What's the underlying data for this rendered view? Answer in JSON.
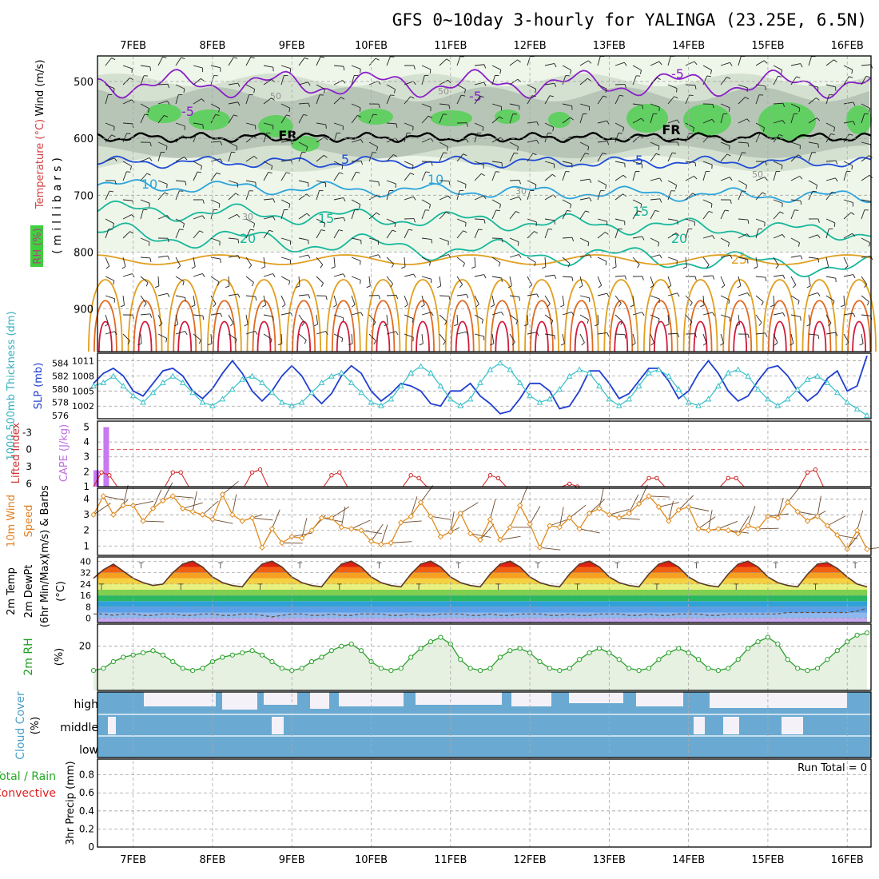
{
  "title": "GFS 0~10day 3-hourly for YALINGA (23.25E, 6.5N)",
  "dates": [
    "7FEB",
    "8FEB",
    "9FEB",
    "10FEB",
    "11FEB",
    "12FEB",
    "13FEB",
    "14FEB",
    "15FEB",
    "16FEB"
  ],
  "run_total": "Run Total = 0",
  "colors": {
    "frame": "#000000",
    "grid": "#a0a0a0",
    "rh_light": "#eef6ea",
    "rh_mid": "#d2dfcd",
    "rh_dark": "#b4c2b4",
    "rh_green": "#52d052",
    "temp_purple": "#8a1fc8",
    "temp_blue": "#1f4bd6",
    "temp_cyan": "#2aa4dc",
    "temp_teal": "#17b79a",
    "temp_orange": "#e0a020",
    "temp_red": "#d01a3c",
    "slp": "#1f3fd0",
    "thickness": "#38c0c8",
    "cape": "#c878f0",
    "lifted": "#d02020",
    "wind10": "#e08c20",
    "rh2m": "#2aa02a",
    "rh2m_fill": "#e6f1e2",
    "cloud": "#6aaad2",
    "cloud_gap": "#f4f2f8",
    "precip_label": "#22aa22",
    "convective_label": "#e02020"
  },
  "panels": {
    "upper": {
      "ylabel_mb": "(millibars)",
      "legend_wind": "Wind (m/s)",
      "legend_temp": "Temperature (°C)",
      "legend_rh": "RH (%)",
      "pressure_ticks": [
        "500",
        "600",
        "700",
        "800",
        "900"
      ],
      "contour_labels": [
        "-5",
        "-5",
        "-5",
        "FR",
        "FR",
        "5",
        "5",
        "10",
        "10",
        "15",
        "15",
        "20",
        "20",
        "25",
        "50",
        "50",
        "50",
        "30",
        "30"
      ]
    },
    "slp": {
      "label_thickness": "1000-500mb Thickness (dm)",
      "label_slp": "SLP (mb)",
      "ticks_thickness": [
        "584",
        "582",
        "580",
        "578",
        "576"
      ],
      "ticks_slp": [
        "1011",
        "1008",
        "1005",
        "1002"
      ]
    },
    "cape": {
      "label_lifted": "Lifted Index",
      "label_cape": "CAPE (J/kg)",
      "ticks_cape": [
        "5",
        "4",
        "3",
        "2",
        "1"
      ],
      "ticks_lifted": [
        "-3",
        "0",
        "3",
        "6"
      ]
    },
    "wind10": {
      "label_line1": "10m Wind",
      "label_line2": "Speed",
      "label_line3": "(m/s) & Barbs",
      "ticks": [
        "4",
        "3",
        "2",
        "1"
      ]
    },
    "temp2m": {
      "label_line1": "2m Temp",
      "label_line2": "2m DewPt",
      "label_line3": "(6hr Min/Max)",
      "unit": "(°C)",
      "ticks": [
        "40",
        "32",
        "24",
        "16",
        "8",
        "0"
      ]
    },
    "rh2m": {
      "label": "2m RH",
      "unit": "(%)",
      "ticks": [
        "20"
      ]
    },
    "cloud": {
      "label": "Cloud Cover",
      "unit": "(%)",
      "levels": [
        "high",
        "middle",
        "low"
      ]
    },
    "precip": {
      "label_line1": "Total / Rain",
      "label_line2": "Convective",
      "unit": "3hr Precip (mm)",
      "ticks": [
        "0.8",
        "0.6",
        "0.4",
        "0.2",
        "0"
      ]
    }
  },
  "chart_data": [
    {
      "type": "heatmap",
      "name": "cross-section",
      "x_range_days": [
        6.55,
        16.3
      ],
      "y_range_mb": [
        975,
        455
      ],
      "temp_contours": [
        {
          "label": "-5",
          "level_mb": 500
        },
        {
          "label": "FR",
          "level_mb": 598
        },
        {
          "label": "5",
          "level_mb": 637
        },
        {
          "label": "10",
          "level_mb": 680
        },
        {
          "label": "15",
          "level_mb": 725
        },
        {
          "label": "20",
          "level_mb": 765
        },
        {
          "label": "25",
          "level_mb": 815
        }
      ]
    },
    {
      "type": "line",
      "name": "slp-thickness",
      "x_days": [
        6.5,
        6.625,
        6.75,
        6.875,
        7.0,
        7.125,
        7.25,
        7.375,
        7.5,
        7.625,
        7.75,
        7.875,
        8.0,
        8.125,
        8.25,
        8.375,
        8.5,
        8.625,
        8.75,
        8.875,
        9.0,
        9.125,
        9.25,
        9.375,
        9.5,
        9.625,
        9.75,
        9.875,
        10.0,
        10.125,
        10.25,
        10.375,
        10.5,
        10.625,
        10.75,
        10.875,
        11.0,
        11.125,
        11.25,
        11.375,
        11.5,
        11.625,
        11.75,
        11.875,
        12.0,
        12.125,
        12.25,
        12.375,
        12.5,
        12.625,
        12.75,
        12.875,
        13.0,
        13.125,
        13.25,
        13.375,
        13.5,
        13.625,
        13.75,
        13.875,
        14.0,
        14.125,
        14.25,
        14.375,
        14.5,
        14.625,
        14.75,
        14.875,
        15.0,
        15.125,
        15.25,
        15.375,
        15.5,
        15.625,
        15.75,
        15.875,
        16.0,
        16.125,
        16.25
      ],
      "slp_mb": [
        1006.5,
        1008.5,
        1009.5,
        1008.0,
        1005.0,
        1004.0,
        1006.5,
        1009.0,
        1009.5,
        1008.0,
        1005.0,
        1003.5,
        1005.5,
        1008.5,
        1011.0,
        1008.5,
        1005.0,
        1003.0,
        1005.0,
        1008.0,
        1010.0,
        1008.0,
        1004.5,
        1002.5,
        1004.5,
        1008.0,
        1010.0,
        1008.5,
        1005.0,
        1003.0,
        1004.5,
        1006.5,
        1006.0,
        1005.0,
        1002.5,
        1002.0,
        1005.0,
        1005.0,
        1006.5,
        1004.0,
        1002.5,
        1000.5,
        1001.0,
        1003.5,
        1006.5,
        1006.5,
        1005.0,
        1001.5,
        1002.0,
        1005.0,
        1009.0,
        1009.0,
        1006.5,
        1003.5,
        1004.5,
        1007.0,
        1009.5,
        1009.5,
        1007.0,
        1003.5,
        1005.0,
        1008.5,
        1011.0,
        1008.5,
        1005.0,
        1003.0,
        1004.0,
        1007.0,
        1009.5,
        1010.0,
        1008.0,
        1005.0,
        1003.0,
        1004.5,
        1007.5,
        1009.0,
        1005.0,
        1006.0,
        1012.0
      ],
      "thickness_dm": [
        580.5,
        581.0,
        582.0,
        580.5,
        579.0,
        578.0,
        579.5,
        581.0,
        582.0,
        581.0,
        579.5,
        578.0,
        577.5,
        578.5,
        580.0,
        581.5,
        582.0,
        581.0,
        579.5,
        578.0,
        577.5,
        578.0,
        579.5,
        581.0,
        582.0,
        582.5,
        581.0,
        579.5,
        578.0,
        577.5,
        578.5,
        580.5,
        582.5,
        583.5,
        582.5,
        580.5,
        578.5,
        577.5,
        578.5,
        581.0,
        583.0,
        584.0,
        583.0,
        581.0,
        579.0,
        578.0,
        578.5,
        580.0,
        582.0,
        583.0,
        582.5,
        580.5,
        578.5,
        577.5,
        578.5,
        580.5,
        582.5,
        583.0,
        582.0,
        580.0,
        578.0,
        577.5,
        578.5,
        580.5,
        582.5,
        583.0,
        582.0,
        580.0,
        578.5,
        577.5,
        578.5,
        580.0,
        581.5,
        582.0,
        581.0,
        579.5,
        578.0,
        577.0,
        576.0
      ],
      "slp_ylim": [
        999.5,
        1012.5
      ],
      "thickness_ylim": [
        575.5,
        585.5
      ]
    },
    {
      "type": "bar",
      "name": "cape",
      "x_days": [
        6.5,
        6.625
      ],
      "values": [
        2.1,
        5.0
      ],
      "ylim": [
        1,
        5.4
      ]
    },
    {
      "type": "line",
      "name": "lifted-index",
      "x_days": [
        6.5,
        6.6,
        6.7,
        6.8,
        7.4,
        7.5,
        7.6,
        7.7,
        8.4,
        8.5,
        8.6,
        8.7,
        9.4,
        9.5,
        9.6,
        9.7,
        10.4,
        10.5,
        10.6,
        10.7,
        11.4,
        11.5,
        11.6,
        11.7,
        12.4,
        12.5,
        12.6,
        12.7,
        13.4,
        13.5,
        13.6,
        13.7,
        14.4,
        14.5,
        14.6,
        14.7,
        15.4,
        15.5,
        15.6,
        15.7
      ],
      "values": [
        6.5,
        4.0,
        4.5,
        6.5,
        6.5,
        4.0,
        4.0,
        6.5,
        6.5,
        4.0,
        3.5,
        6.5,
        6.5,
        4.5,
        4.0,
        6.5,
        6.5,
        4.5,
        5.0,
        6.5,
        6.5,
        4.5,
        5.0,
        6.5,
        6.5,
        6.0,
        6.5,
        6.5,
        6.5,
        5.0,
        5.0,
        6.5,
        6.5,
        5.0,
        5.0,
        6.5,
        6.5,
        4.0,
        3.5,
        6.5
      ],
      "ylim": [
        -5,
        6.5
      ]
    },
    {
      "type": "line",
      "name": "wind10",
      "x_days": [
        6.5,
        6.625,
        6.75,
        6.875,
        7.0,
        7.125,
        7.25,
        7.375,
        7.5,
        7.625,
        7.75,
        7.875,
        8.0,
        8.125,
        8.25,
        8.375,
        8.5,
        8.625,
        8.75,
        8.875,
        9.0,
        9.125,
        9.25,
        9.375,
        9.5,
        9.625,
        9.75,
        9.875,
        10.0,
        10.125,
        10.25,
        10.375,
        10.5,
        10.625,
        10.75,
        10.875,
        11.0,
        11.125,
        11.25,
        11.375,
        11.5,
        11.625,
        11.75,
        11.875,
        12.0,
        12.125,
        12.25,
        12.375,
        12.5,
        12.625,
        12.75,
        12.875,
        13.0,
        13.125,
        13.25,
        13.375,
        13.5,
        13.625,
        13.75,
        13.875,
        14.0,
        14.125,
        14.25,
        14.375,
        14.5,
        14.625,
        14.75,
        14.875,
        15.0,
        15.125,
        15.25,
        15.375,
        15.5,
        15.625,
        15.75,
        15.875,
        16.0,
        16.125,
        16.25
      ],
      "values": [
        3.0,
        4.2,
        3.0,
        3.6,
        3.6,
        2.6,
        3.4,
        3.9,
        4.2,
        3.4,
        3.2,
        3.0,
        2.7,
        4.3,
        3.0,
        2.6,
        2.8,
        0.9,
        2.1,
        1.2,
        1.6,
        1.5,
        2.0,
        2.8,
        2.8,
        2.2,
        2.1,
        2.0,
        1.3,
        1.1,
        1.2,
        2.5,
        2.9,
        3.8,
        2.9,
        1.6,
        1.9,
        3.1,
        1.8,
        1.4,
        2.7,
        1.4,
        2.2,
        3.6,
        2.4,
        0.9,
        2.3,
        2.2,
        2.8,
        2.1,
        3.1,
        3.4,
        3.0,
        2.8,
        3.1,
        3.7,
        4.2,
        3.5,
        2.6,
        3.3,
        3.5,
        2.1,
        2.0,
        2.1,
        2.0,
        1.8,
        2.3,
        2.1,
        2.9,
        2.8,
        3.8,
        3.2,
        2.6,
        2.9,
        2.3,
        1.7,
        0.8,
        2.0,
        0.8
      ],
      "ylim": [
        0.4,
        4.7
      ]
    },
    {
      "type": "area",
      "name": "temp2m",
      "x_days": [
        6.5,
        6.625,
        6.75,
        6.875,
        7.0,
        7.125,
        7.25,
        7.375,
        7.5,
        7.625,
        7.75,
        7.875,
        8.0,
        8.125,
        8.25,
        8.375,
        8.5,
        8.625,
        8.75,
        8.875,
        9.0,
        9.125,
        9.25,
        9.375,
        9.5,
        9.625,
        9.75,
        9.875,
        10.0,
        10.125,
        10.25,
        10.375,
        10.5,
        10.625,
        10.75,
        10.875,
        11.0,
        11.125,
        11.25,
        11.375,
        11.5,
        11.625,
        11.75,
        11.875,
        12.0,
        12.125,
        12.25,
        12.375,
        12.5,
        12.625,
        12.75,
        12.875,
        13.0,
        13.125,
        13.25,
        13.375,
        13.5,
        13.625,
        13.75,
        13.875,
        14.0,
        14.125,
        14.25,
        14.375,
        14.5,
        14.625,
        14.75,
        14.875,
        15.0,
        15.125,
        15.25,
        15.375,
        15.5,
        15.625,
        15.75,
        15.875,
        16.0,
        16.125,
        16.25
      ],
      "temp_c": [
        28,
        34,
        38,
        33,
        28,
        25,
        23,
        24,
        32,
        38,
        40,
        36,
        29,
        25,
        23,
        22,
        31,
        38,
        40,
        36,
        29,
        25,
        23,
        22,
        31,
        38,
        40,
        36,
        29,
        25,
        23,
        22,
        31,
        38,
        40,
        36,
        29,
        25,
        23,
        22,
        31,
        38,
        40,
        36,
        29,
        25,
        23,
        22,
        31,
        38,
        40,
        36,
        29,
        25,
        23,
        22,
        31,
        38,
        40,
        36,
        29,
        25,
        23,
        22,
        31,
        38,
        40,
        36,
        29,
        25,
        23,
        22,
        31,
        38,
        39,
        35,
        29,
        24,
        22
      ],
      "dewpt_c": [
        3,
        3,
        2,
        3,
        3,
        2,
        2,
        3,
        3,
        2,
        2,
        3,
        3,
        2,
        2,
        3,
        3,
        2,
        1,
        2,
        3,
        3,
        2,
        2,
        3,
        2,
        2,
        3,
        3,
        3,
        2,
        2,
        3,
        2,
        2,
        3,
        3,
        3,
        2,
        2,
        3,
        2,
        2,
        3,
        3,
        3,
        2,
        2,
        3,
        2,
        2,
        3,
        3,
        3,
        2,
        2,
        3,
        2,
        2,
        3,
        3,
        3,
        2,
        2,
        3,
        3,
        3,
        3,
        3,
        3,
        4,
        4,
        4,
        4,
        4,
        4,
        4,
        5,
        7
      ],
      "ylim": [
        -3,
        43
      ]
    },
    {
      "type": "line",
      "name": "rh2m",
      "x_days": [
        6.5,
        6.625,
        6.75,
        6.875,
        7.0,
        7.125,
        7.25,
        7.375,
        7.5,
        7.625,
        7.75,
        7.875,
        8.0,
        8.125,
        8.25,
        8.375,
        8.5,
        8.625,
        8.75,
        8.875,
        9.0,
        9.125,
        9.25,
        9.375,
        9.5,
        9.625,
        9.75,
        9.875,
        10.0,
        10.125,
        10.25,
        10.375,
        10.5,
        10.625,
        10.75,
        10.875,
        11.0,
        11.125,
        11.25,
        11.375,
        11.5,
        11.625,
        11.75,
        11.875,
        12.0,
        12.125,
        12.25,
        12.375,
        12.5,
        12.625,
        12.75,
        12.875,
        13.0,
        13.125,
        13.25,
        13.375,
        13.5,
        13.625,
        13.75,
        13.875,
        14.0,
        14.125,
        14.25,
        14.375,
        14.5,
        14.625,
        14.75,
        14.875,
        15.0,
        15.125,
        15.25,
        15.375,
        15.5,
        15.625,
        15.75,
        15.875,
        16.0,
        16.125,
        16.25
      ],
      "values": [
        9,
        10,
        13,
        15,
        16,
        17,
        18,
        16,
        13,
        10,
        9,
        10,
        13,
        15,
        16,
        17,
        18,
        16,
        13,
        10,
        9,
        10,
        13,
        15,
        18,
        20,
        21,
        18,
        13,
        10,
        9,
        10,
        15,
        19,
        22,
        24,
        21,
        14,
        10,
        9,
        10,
        15,
        18,
        19,
        17,
        13,
        10,
        9,
        10,
        14,
        17,
        19,
        17,
        14,
        10,
        9,
        10,
        14,
        17,
        19,
        17,
        14,
        10,
        9,
        10,
        14,
        19,
        22,
        24,
        21,
        14,
        10,
        9,
        10,
        14,
        18,
        22,
        25,
        26
      ],
      "ylim": [
        0,
        30
      ]
    },
    {
      "type": "bar",
      "name": "cloud-cover",
      "categories": [
        "high",
        "middle",
        "low"
      ],
      "values_pct": [
        60,
        100,
        100
      ]
    },
    {
      "type": "bar",
      "name": "precip",
      "values": [
        0
      ],
      "ylim": [
        0,
        1
      ]
    }
  ]
}
